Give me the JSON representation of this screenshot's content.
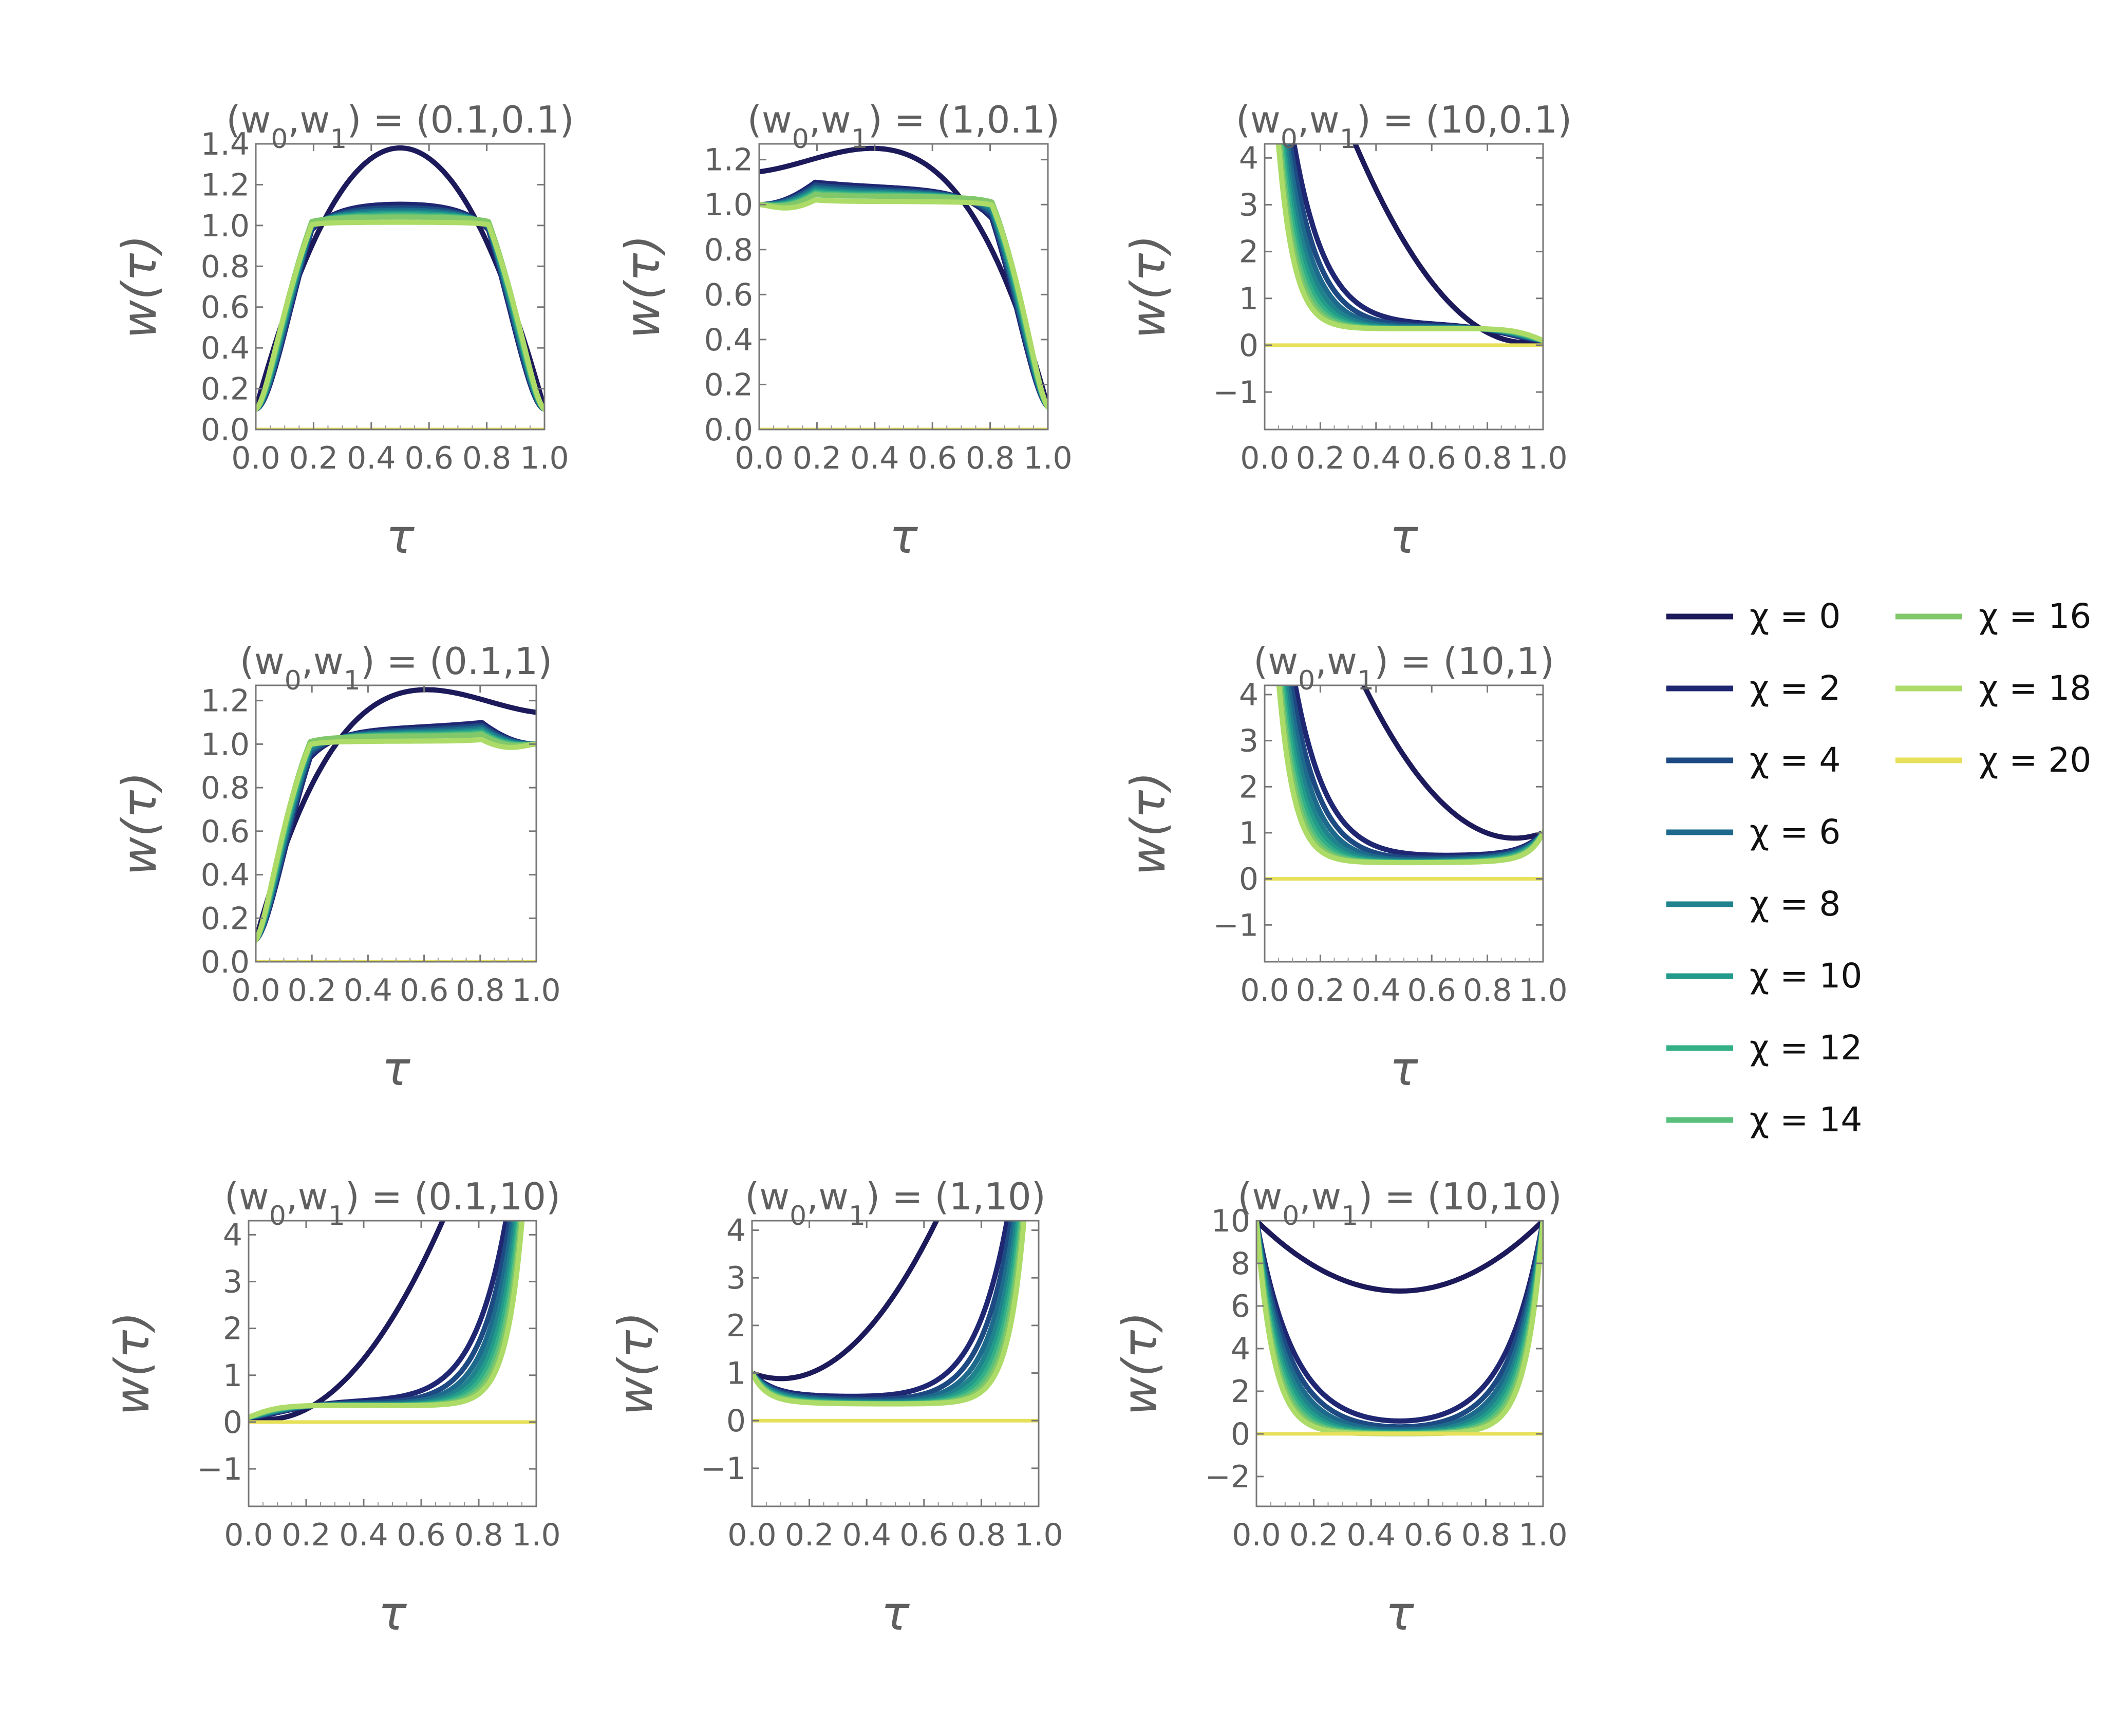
{
  "figure": {
    "xlabel": "τ",
    "ylabel": "w(τ)",
    "legend_placement": "right",
    "colors": [
      "#1c1a5a",
      "#1f2672",
      "#1d4a82",
      "#1d6a8c",
      "#1f828c",
      "#229b8a",
      "#34b088",
      "#58c07c",
      "#81c86a",
      "#addb68",
      "#e6e05a"
    ]
  },
  "legend": {
    "entries": [
      {
        "label": "χ = 0",
        "color": "#1c1a5a"
      },
      {
        "label": "χ = 2",
        "color": "#1f2672"
      },
      {
        "label": "χ = 4",
        "color": "#1d4a82"
      },
      {
        "label": "χ = 6",
        "color": "#1d6a8c"
      },
      {
        "label": "χ = 8",
        "color": "#1f828c"
      },
      {
        "label": "χ = 10",
        "color": "#229b8a"
      },
      {
        "label": "χ = 12",
        "color": "#34b088"
      },
      {
        "label": "χ = 14",
        "color": "#58c07c"
      },
      {
        "label": "χ = 16",
        "color": "#81c86a"
      },
      {
        "label": "χ = 18",
        "color": "#addb68"
      },
      {
        "label": "χ = 20",
        "color": "#e6e05a"
      }
    ]
  },
  "chart_data": [
    {
      "type": "line",
      "title": "(w0,w1) = (0.1,0.1)",
      "w0": 0.1,
      "w1": 0.1,
      "xlabel": "τ",
      "ylabel": "w(τ)",
      "xlim": [
        0,
        1
      ],
      "ylim": [
        0,
        1.4
      ],
      "xticks": [
        "0.0",
        "0.2",
        "0.4",
        "0.6",
        "0.8",
        "1.0"
      ],
      "yticks": [
        "0.0",
        "0.2",
        "0.4",
        "0.6",
        "0.8",
        "1.0",
        "1.2",
        "1.4"
      ],
      "chi": [
        0,
        2,
        4,
        6,
        8,
        10,
        12,
        14,
        16,
        18,
        20
      ]
    },
    {
      "type": "line",
      "title": "(w0,w1) = (1,0.1)",
      "w0": 1,
      "w1": 0.1,
      "xlabel": "τ",
      "ylabel": "w(τ)",
      "xlim": [
        0,
        1
      ],
      "ylim": [
        0,
        1.27
      ],
      "xticks": [
        "0.0",
        "0.2",
        "0.4",
        "0.6",
        "0.8",
        "1.0"
      ],
      "yticks": [
        "0.0",
        "0.2",
        "0.4",
        "0.6",
        "0.8",
        "1.0",
        "1.2"
      ],
      "chi": [
        0,
        2,
        4,
        6,
        8,
        10,
        12,
        14,
        16,
        18,
        20
      ]
    },
    {
      "type": "line",
      "title": "(w0,w1) = (10,0.1)",
      "w0": 10,
      "w1": 0.1,
      "xlabel": "τ",
      "ylabel": "w(τ)",
      "xlim": [
        0,
        1
      ],
      "ylim": [
        -1.8,
        4.3
      ],
      "xticks": [
        "0.0",
        "0.2",
        "0.4",
        "0.6",
        "0.8",
        "1.0"
      ],
      "yticks": [
        "−1",
        "0",
        "1",
        "2",
        "3",
        "4"
      ],
      "chi": [
        0,
        2,
        4,
        6,
        8,
        10,
        12,
        14,
        16,
        18,
        20
      ]
    },
    {
      "type": "line",
      "title": "(w0,w1) = (0.1,1)",
      "w0": 0.1,
      "w1": 1,
      "xlabel": "τ",
      "ylabel": "w(τ)",
      "xlim": [
        0,
        1
      ],
      "ylim": [
        0,
        1.27
      ],
      "xticks": [
        "0.0",
        "0.2",
        "0.4",
        "0.6",
        "0.8",
        "1.0"
      ],
      "yticks": [
        "0.0",
        "0.2",
        "0.4",
        "0.6",
        "0.8",
        "1.0",
        "1.2"
      ],
      "chi": [
        0,
        2,
        4,
        6,
        8,
        10,
        12,
        14,
        16,
        18,
        20
      ]
    },
    {
      "type": "line",
      "title": "(w0,w1) = (10,1)",
      "w0": 10,
      "w1": 1,
      "xlabel": "τ",
      "ylabel": "w(τ)",
      "xlim": [
        0,
        1
      ],
      "ylim": [
        -1.8,
        4.2
      ],
      "xticks": [
        "0.0",
        "0.2",
        "0.4",
        "0.6",
        "0.8",
        "1.0"
      ],
      "yticks": [
        "−1",
        "0",
        "1",
        "2",
        "3",
        "4"
      ],
      "chi": [
        0,
        2,
        4,
        6,
        8,
        10,
        12,
        14,
        16,
        18,
        20
      ]
    },
    {
      "type": "line",
      "title": "(w0,w1) = (0.1,10)",
      "w0": 0.1,
      "w1": 10,
      "xlabel": "τ",
      "ylabel": "w(τ)",
      "xlim": [
        0,
        1
      ],
      "ylim": [
        -1.8,
        4.3
      ],
      "xticks": [
        "0.0",
        "0.2",
        "0.4",
        "0.6",
        "0.8",
        "1.0"
      ],
      "yticks": [
        "−1",
        "0",
        "1",
        "2",
        "3",
        "4"
      ],
      "chi": [
        0,
        2,
        4,
        6,
        8,
        10,
        12,
        14,
        16,
        18,
        20
      ]
    },
    {
      "type": "line",
      "title": "(w0,w1) = (1,10)",
      "w0": 1,
      "w1": 10,
      "xlabel": "τ",
      "ylabel": "w(τ)",
      "xlim": [
        0,
        1
      ],
      "ylim": [
        -1.8,
        4.2
      ],
      "xticks": [
        "0.0",
        "0.2",
        "0.4",
        "0.6",
        "0.8",
        "1.0"
      ],
      "yticks": [
        "−1",
        "0",
        "1",
        "2",
        "3",
        "4"
      ],
      "chi": [
        0,
        2,
        4,
        6,
        8,
        10,
        12,
        14,
        16,
        18,
        20
      ]
    },
    {
      "type": "line",
      "title": "(w0,w1) = (10,10)",
      "w0": 10,
      "w1": 10,
      "xlabel": "τ",
      "ylabel": "w(τ)",
      "xlim": [
        0,
        1
      ],
      "ylim": [
        -3.4,
        10
      ],
      "xticks": [
        "0.0",
        "0.2",
        "0.4",
        "0.6",
        "0.8",
        "1.0"
      ],
      "yticks": [
        "−2",
        "0",
        "2",
        "4",
        "6",
        "8",
        "10"
      ],
      "chi": [
        0,
        2,
        4,
        6,
        8,
        10,
        12,
        14,
        16,
        18,
        20
      ]
    }
  ]
}
